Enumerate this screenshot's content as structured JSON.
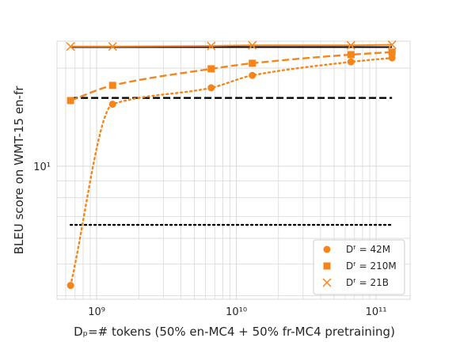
{
  "chart_data": {
    "type": "line",
    "xscale": "log",
    "yscale": "log",
    "xlim": [
      520000000.0,
      175000000000.0
    ],
    "ylim": [
      3.9,
      24.2
    ],
    "xlabel": "$D_p$=# tokens (50% en-MC4 + 50% fr-MC4 pretraining)",
    "ylabel": "BLEU score on WMT-15 en-fr",
    "xlabel_display": "Dₚ=# tokens (50% en-MC4 + 50% fr-MC4 pretraining)",
    "x_ticks": [
      {
        "value": 1000000000.0,
        "label": "10⁹"
      },
      {
        "value": 10000000000.0,
        "label": "10¹⁰"
      },
      {
        "value": 100000000000.0,
        "label": "10¹¹"
      }
    ],
    "y_ticks": [
      {
        "value": 10,
        "label": "10¹"
      }
    ],
    "grid": true,
    "legend_position": "lower right",
    "colors": {
      "series": "#f58518",
      "baseline": "#000000",
      "grid": "#d9d9d9"
    },
    "series": [
      {
        "name": "Dᶠ = 42M",
        "marker": "circle",
        "linestyle": "dotted",
        "x": [
          650000000.0,
          1300000000.0,
          6600000000.0,
          13000000000.0,
          66000000000.0,
          130000000000.0
        ],
        "y": [
          4.3,
          15.5,
          17.4,
          19.0,
          20.9,
          21.5
        ]
      },
      {
        "name": "Dᶠ = 210M",
        "marker": "square",
        "linestyle": "dashed",
        "x": [
          650000000.0,
          1300000000.0,
          6600000000.0,
          13000000000.0,
          66000000000.0,
          130000000000.0
        ],
        "y": [
          15.9,
          17.7,
          19.9,
          20.7,
          22.0,
          22.4
        ]
      },
      {
        "name": "Dᶠ = 21B",
        "marker": "x",
        "linestyle": "solid",
        "x": [
          650000000.0,
          1300000000.0,
          6600000000.0,
          13000000000.0,
          66000000000.0,
          130000000000.0
        ],
        "y": [
          23.3,
          23.3,
          23.4,
          23.5,
          23.5,
          23.6
        ]
      }
    ],
    "baselines": [
      {
        "linestyle": "dashed",
        "y": 16.2
      },
      {
        "linestyle": "dotted",
        "y": 6.6
      },
      {
        "linestyle": "solid",
        "y": 23.2
      }
    ]
  }
}
